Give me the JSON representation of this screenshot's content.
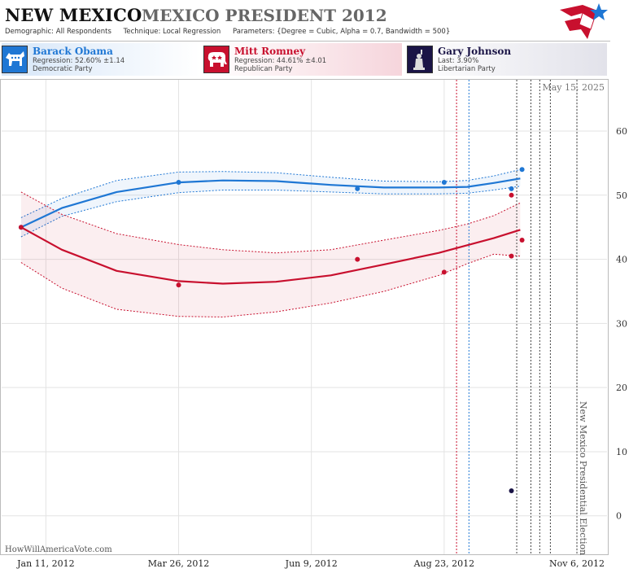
{
  "header": {
    "state": "NEW MEXICO",
    "race": "MEXICO PRESIDENT 2012",
    "demographic_label": "Demographic:",
    "demographic_value": "All Respondents",
    "technique_label": "Technique:",
    "technique_value": "Local Regression",
    "parameters_label": "Parameters:",
    "parameters_value": "{Degree = Cubic, Alpha = 0.7, Bandwidth = 500}"
  },
  "candidates": [
    {
      "name": "Barack Obama",
      "stat": "Regression: 52.60% ±1.14",
      "party": "Democratic Party",
      "color": "#1f77d4",
      "icon": "donkey-icon"
    },
    {
      "name": "Mitt Romney",
      "stat": "Regression: 44.61% ±4.01",
      "party": "Republican Party",
      "color": "#c8102e",
      "icon": "elephant-icon"
    },
    {
      "name": "Gary Johnson",
      "stat": "Last: 3.90%",
      "party": "Libertarian Party",
      "color": "#1a1446",
      "icon": "liberty-icon"
    }
  ],
  "chart_data": {
    "type": "line",
    "date_label": "May 15, 2025",
    "election_label": "New Mexico Presidential Election",
    "watermark": "HowWillAmericaVote.com",
    "x_ticks": [
      "Jan 11, 2012",
      "Mar 26, 2012",
      "Jun 9, 2012",
      "Aug 23, 2012",
      "Nov 6, 2012"
    ],
    "y_ticks": [
      0,
      10,
      20,
      30,
      40,
      50,
      60
    ],
    "xlim": [
      "2011-12-17",
      "2012-11-23"
    ],
    "ylim": [
      -6,
      68
    ],
    "grid": true,
    "series": [
      {
        "name": "Barack Obama",
        "color": "#1f77d4",
        "trend": [
          [
            "2011-12-28",
            45.0
          ],
          [
            "2012-01-20",
            48.0
          ],
          [
            "2012-02-20",
            50.5
          ],
          [
            "2012-03-26",
            52.0
          ],
          [
            "2012-04-20",
            52.3
          ],
          [
            "2012-05-20",
            52.2
          ],
          [
            "2012-06-20",
            51.6
          ],
          [
            "2012-07-20",
            51.2
          ],
          [
            "2012-08-20",
            51.2
          ],
          [
            "2012-09-05",
            51.3
          ],
          [
            "2012-09-20",
            51.9
          ],
          [
            "2012-10-05",
            52.6
          ]
        ],
        "band_upper": [
          [
            "2011-12-28",
            46.5
          ],
          [
            "2012-01-20",
            49.5
          ],
          [
            "2012-02-20",
            52.3
          ],
          [
            "2012-03-26",
            53.6
          ],
          [
            "2012-04-20",
            53.7
          ],
          [
            "2012-05-20",
            53.5
          ],
          [
            "2012-06-20",
            52.8
          ],
          [
            "2012-07-20",
            52.2
          ],
          [
            "2012-08-20",
            52.1
          ],
          [
            "2012-09-05",
            52.3
          ],
          [
            "2012-09-20",
            53.0
          ],
          [
            "2012-10-05",
            54.0
          ]
        ],
        "band_lower": [
          [
            "2011-12-28",
            43.5
          ],
          [
            "2012-01-20",
            46.7
          ],
          [
            "2012-02-20",
            49.0
          ],
          [
            "2012-03-26",
            50.4
          ],
          [
            "2012-04-20",
            50.8
          ],
          [
            "2012-05-20",
            50.8
          ],
          [
            "2012-06-20",
            50.5
          ],
          [
            "2012-07-20",
            50.2
          ],
          [
            "2012-08-20",
            50.2
          ],
          [
            "2012-09-05",
            50.3
          ],
          [
            "2012-09-20",
            50.8
          ],
          [
            "2012-10-05",
            51.4
          ]
        ],
        "points": [
          [
            "2011-12-28",
            45
          ],
          [
            "2012-03-26",
            52
          ],
          [
            "2012-07-05",
            51
          ],
          [
            "2012-08-23",
            52
          ],
          [
            "2012-09-30",
            51
          ],
          [
            "2012-10-06",
            54
          ]
        ]
      },
      {
        "name": "Mitt Romney",
        "color": "#c8102e",
        "trend": [
          [
            "2011-12-28",
            45.0
          ],
          [
            "2012-01-20",
            41.5
          ],
          [
            "2012-02-20",
            38.2
          ],
          [
            "2012-03-26",
            36.6
          ],
          [
            "2012-04-20",
            36.2
          ],
          [
            "2012-05-20",
            36.5
          ],
          [
            "2012-06-20",
            37.5
          ],
          [
            "2012-07-20",
            39.2
          ],
          [
            "2012-08-20",
            41.0
          ],
          [
            "2012-09-05",
            42.2
          ],
          [
            "2012-09-20",
            43.3
          ],
          [
            "2012-10-05",
            44.6
          ]
        ],
        "band_upper": [
          [
            "2011-12-28",
            50.5
          ],
          [
            "2012-01-20",
            47.0
          ],
          [
            "2012-02-20",
            44.0
          ],
          [
            "2012-03-26",
            42.3
          ],
          [
            "2012-04-20",
            41.5
          ],
          [
            "2012-05-20",
            41.0
          ],
          [
            "2012-06-20",
            41.5
          ],
          [
            "2012-07-20",
            43.0
          ],
          [
            "2012-08-20",
            44.5
          ],
          [
            "2012-09-05",
            45.5
          ],
          [
            "2012-09-20",
            46.8
          ],
          [
            "2012-10-05",
            48.8
          ]
        ],
        "band_lower": [
          [
            "2011-12-28",
            39.5
          ],
          [
            "2012-01-20",
            35.5
          ],
          [
            "2012-02-20",
            32.2
          ],
          [
            "2012-03-26",
            31.1
          ],
          [
            "2012-04-20",
            31.0
          ],
          [
            "2012-05-20",
            31.8
          ],
          [
            "2012-06-20",
            33.2
          ],
          [
            "2012-07-20",
            35.0
          ],
          [
            "2012-08-20",
            37.5
          ],
          [
            "2012-09-05",
            39.3
          ],
          [
            "2012-09-20",
            40.8
          ],
          [
            "2012-10-05",
            40.5
          ]
        ],
        "points": [
          [
            "2011-12-28",
            45
          ],
          [
            "2012-03-26",
            36
          ],
          [
            "2012-07-05",
            40
          ],
          [
            "2012-08-23",
            38
          ],
          [
            "2012-09-30",
            50
          ],
          [
            "2012-09-30",
            40.5
          ],
          [
            "2012-10-06",
            43
          ]
        ]
      },
      {
        "name": "Gary Johnson",
        "color": "#1a1446",
        "points": [
          [
            "2012-09-30",
            3.9
          ]
        ]
      }
    ],
    "events": [
      {
        "date": "2012-08-30",
        "color": "#c8102e",
        "style": "dashed"
      },
      {
        "date": "2012-09-06",
        "color": "#1f77d4",
        "style": "dashed"
      },
      {
        "date": "2012-10-03",
        "color": "#444444",
        "style": "dashed"
      },
      {
        "date": "2012-10-11",
        "color": "#444444",
        "style": "dashed"
      },
      {
        "date": "2012-10-16",
        "color": "#444444",
        "style": "dashed"
      },
      {
        "date": "2012-10-22",
        "color": "#444444",
        "style": "dashed"
      },
      {
        "date": "2012-11-06",
        "color": "#444444",
        "style": "dashed"
      }
    ]
  }
}
